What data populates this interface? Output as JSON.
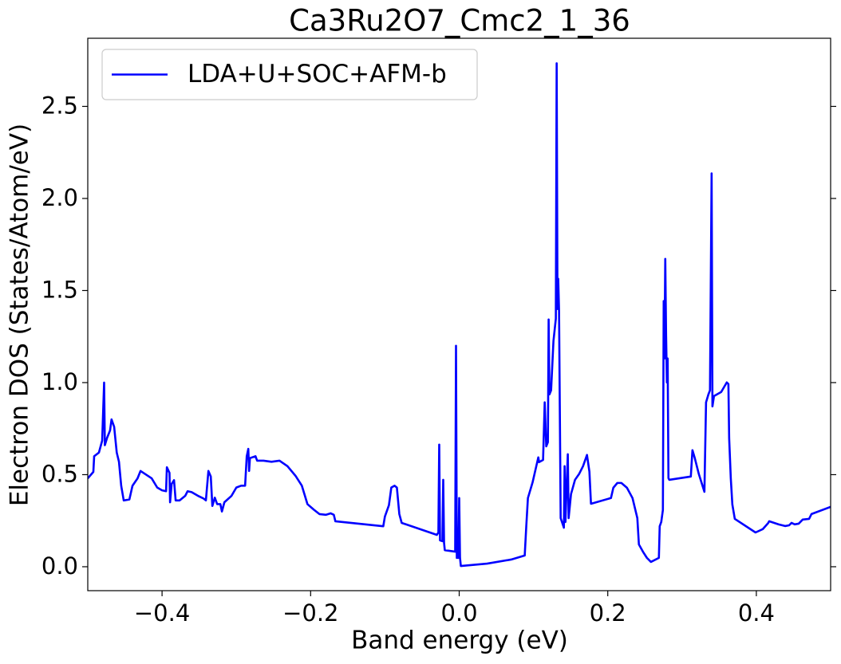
{
  "chart_data": {
    "type": "line",
    "title": "Ca3Ru2O7_Cmc2_1_36",
    "xlabel": "Band energy (eV)",
    "ylabel": "Electron DOS (States/Atom/eV)",
    "xlim": [
      -0.5,
      0.5
    ],
    "ylim": [
      -0.13,
      2.87
    ],
    "xticks": [
      {
        "value": -0.4,
        "label": "−0.4"
      },
      {
        "value": -0.2,
        "label": "−0.2"
      },
      {
        "value": 0,
        "label": "0.0"
      },
      0.2,
      0.4
    ],
    "yticks": [
      {
        "value": 0,
        "label": "0.0"
      },
      0.5,
      {
        "value": 1,
        "label": "1.0"
      },
      1.5,
      {
        "value": 2,
        "label": "2.0"
      },
      2.5
    ],
    "legend": "upper left",
    "grid": false,
    "x": [
      -0.5,
      -0.4925,
      -0.4914,
      -0.485,
      -0.4806,
      -0.478,
      -0.477,
      -0.474,
      -0.47,
      -0.468,
      -0.4645,
      -0.461,
      -0.458,
      -0.455,
      -0.4516,
      -0.444,
      -0.4398,
      -0.433,
      -0.429,
      -0.4215,
      -0.414,
      -0.4065,
      -0.4,
      -0.3946,
      -0.3935,
      -0.39,
      -0.3892,
      -0.3871,
      -0.3839,
      -0.3817,
      -0.3763,
      -0.3688,
      -0.3656,
      -0.3602,
      -0.3516,
      -0.344,
      -0.341,
      -0.3376,
      -0.3344,
      -0.3323,
      -0.329,
      -0.3258,
      -0.3215,
      -0.3194,
      -0.3161,
      -0.3065,
      -0.3,
      -0.2935,
      -0.2882,
      -0.286,
      -0.2839,
      -0.2828,
      -0.2817,
      -0.2742,
      -0.272,
      -0.2634,
      -0.2527,
      -0.2419,
      -0.2312,
      -0.2204,
      -0.2118,
      -0.2043,
      -0.1957,
      -0.1882,
      -0.1796,
      -0.1731,
      -0.1688,
      -0.1667,
      -0.1022,
      -0.1,
      -0.0946,
      -0.0914,
      -0.0871,
      -0.0839,
      -0.0806,
      -0.0774,
      -0.0301,
      -0.028,
      -0.0269,
      -0.0258,
      -0.0226,
      -0.0215,
      -0.0204,
      -0.0194,
      -0.0054,
      -0.0043,
      -0.0032,
      -0.0011,
      0.0,
      0.0011,
      0.0022,
      0.0376,
      0.0699,
      0.0882,
      0.0903,
      0.0925,
      0.0989,
      0.1065,
      0.1075,
      0.1129,
      0.1151,
      0.1172,
      0.1194,
      0.1204,
      0.1215,
      0.1237,
      0.1269,
      0.1301,
      0.1312,
      0.1323,
      0.1333,
      0.1344,
      0.1366,
      0.1409,
      0.1419,
      0.143,
      0.1462,
      0.1473,
      0.1505,
      0.1559,
      0.1613,
      0.1667,
      0.172,
      0.1753,
      0.1774,
      0.2043,
      0.2075,
      0.2129,
      0.2183,
      0.2258,
      0.2333,
      0.2398,
      0.2419,
      0.2473,
      0.2527,
      0.2581,
      0.2688,
      0.2699,
      0.272,
      0.2742,
      0.2753,
      0.2763,
      0.2774,
      0.2785,
      0.2796,
      0.2806,
      0.2817,
      0.2828,
      0.3118,
      0.314,
      0.3172,
      0.3226,
      0.3301,
      0.3323,
      0.3355,
      0.3376,
      0.3398,
      0.3409,
      0.343,
      0.3527,
      0.3602,
      0.3624,
      0.3634,
      0.3656,
      0.3677,
      0.371,
      0.3989,
      0.4086,
      0.4161,
      0.4172,
      0.4301,
      0.4387,
      0.4441,
      0.4473,
      0.4516,
      0.457,
      0.4624,
      0.471,
      0.4742,
      0.5
    ],
    "series": [
      {
        "name": "LDA+U+SOC+AFM-b",
        "color": "#0000ff",
        "values": [
          0.48,
          0.515,
          0.6,
          0.62,
          0.685,
          1.0,
          0.66,
          0.7,
          0.74,
          0.8,
          0.76,
          0.62,
          0.57,
          0.44,
          0.36,
          0.365,
          0.44,
          0.48,
          0.52,
          0.5,
          0.48,
          0.43,
          0.415,
          0.41,
          0.54,
          0.51,
          0.35,
          0.45,
          0.47,
          0.36,
          0.36,
          0.385,
          0.41,
          0.405,
          0.385,
          0.37,
          0.36,
          0.52,
          0.49,
          0.33,
          0.375,
          0.34,
          0.34,
          0.3,
          0.35,
          0.385,
          0.43,
          0.44,
          0.44,
          0.6,
          0.64,
          0.52,
          0.59,
          0.6,
          0.576,
          0.576,
          0.57,
          0.576,
          0.546,
          0.494,
          0.44,
          0.34,
          0.31,
          0.286,
          0.282,
          0.29,
          0.282,
          0.247,
          0.22,
          0.273,
          0.334,
          0.43,
          0.44,
          0.43,
          0.286,
          0.238,
          0.173,
          0.186,
          0.663,
          0.143,
          0.139,
          0.472,
          0.13,
          0.09,
          0.082,
          1.2,
          0.048,
          0.048,
          0.373,
          0.048,
          0.004,
          0.017,
          0.039,
          0.061,
          0.22,
          0.373,
          0.46,
          0.594,
          0.568,
          0.58,
          0.893,
          0.654,
          0.676,
          1.343,
          0.936,
          0.958,
          1.226,
          1.347,
          2.734,
          1.4,
          1.564,
          1.39,
          0.264,
          0.212,
          0.546,
          0.243,
          0.611,
          0.264,
          0.394,
          0.472,
          0.503,
          0.546,
          0.607,
          0.516,
          0.342,
          0.373,
          0.429,
          0.455,
          0.455,
          0.429,
          0.373,
          0.264,
          0.121,
          0.082,
          0.048,
          0.026,
          0.048,
          0.22,
          0.243,
          0.308,
          1.443,
          1.131,
          1.672,
          1.261,
          1.001,
          1.131,
          0.481,
          0.472,
          0.49,
          0.633,
          0.589,
          0.503,
          0.407,
          0.893,
          0.936,
          0.958,
          2.136,
          0.871,
          0.927,
          0.949,
          1.001,
          0.992,
          0.698,
          0.481,
          0.338,
          0.26,
          0.186,
          0.204,
          0.238,
          0.247,
          0.23,
          0.221,
          0.225,
          0.238,
          0.23,
          0.234,
          0.256,
          0.26,
          0.286,
          0.325
        ]
      }
    ]
  }
}
